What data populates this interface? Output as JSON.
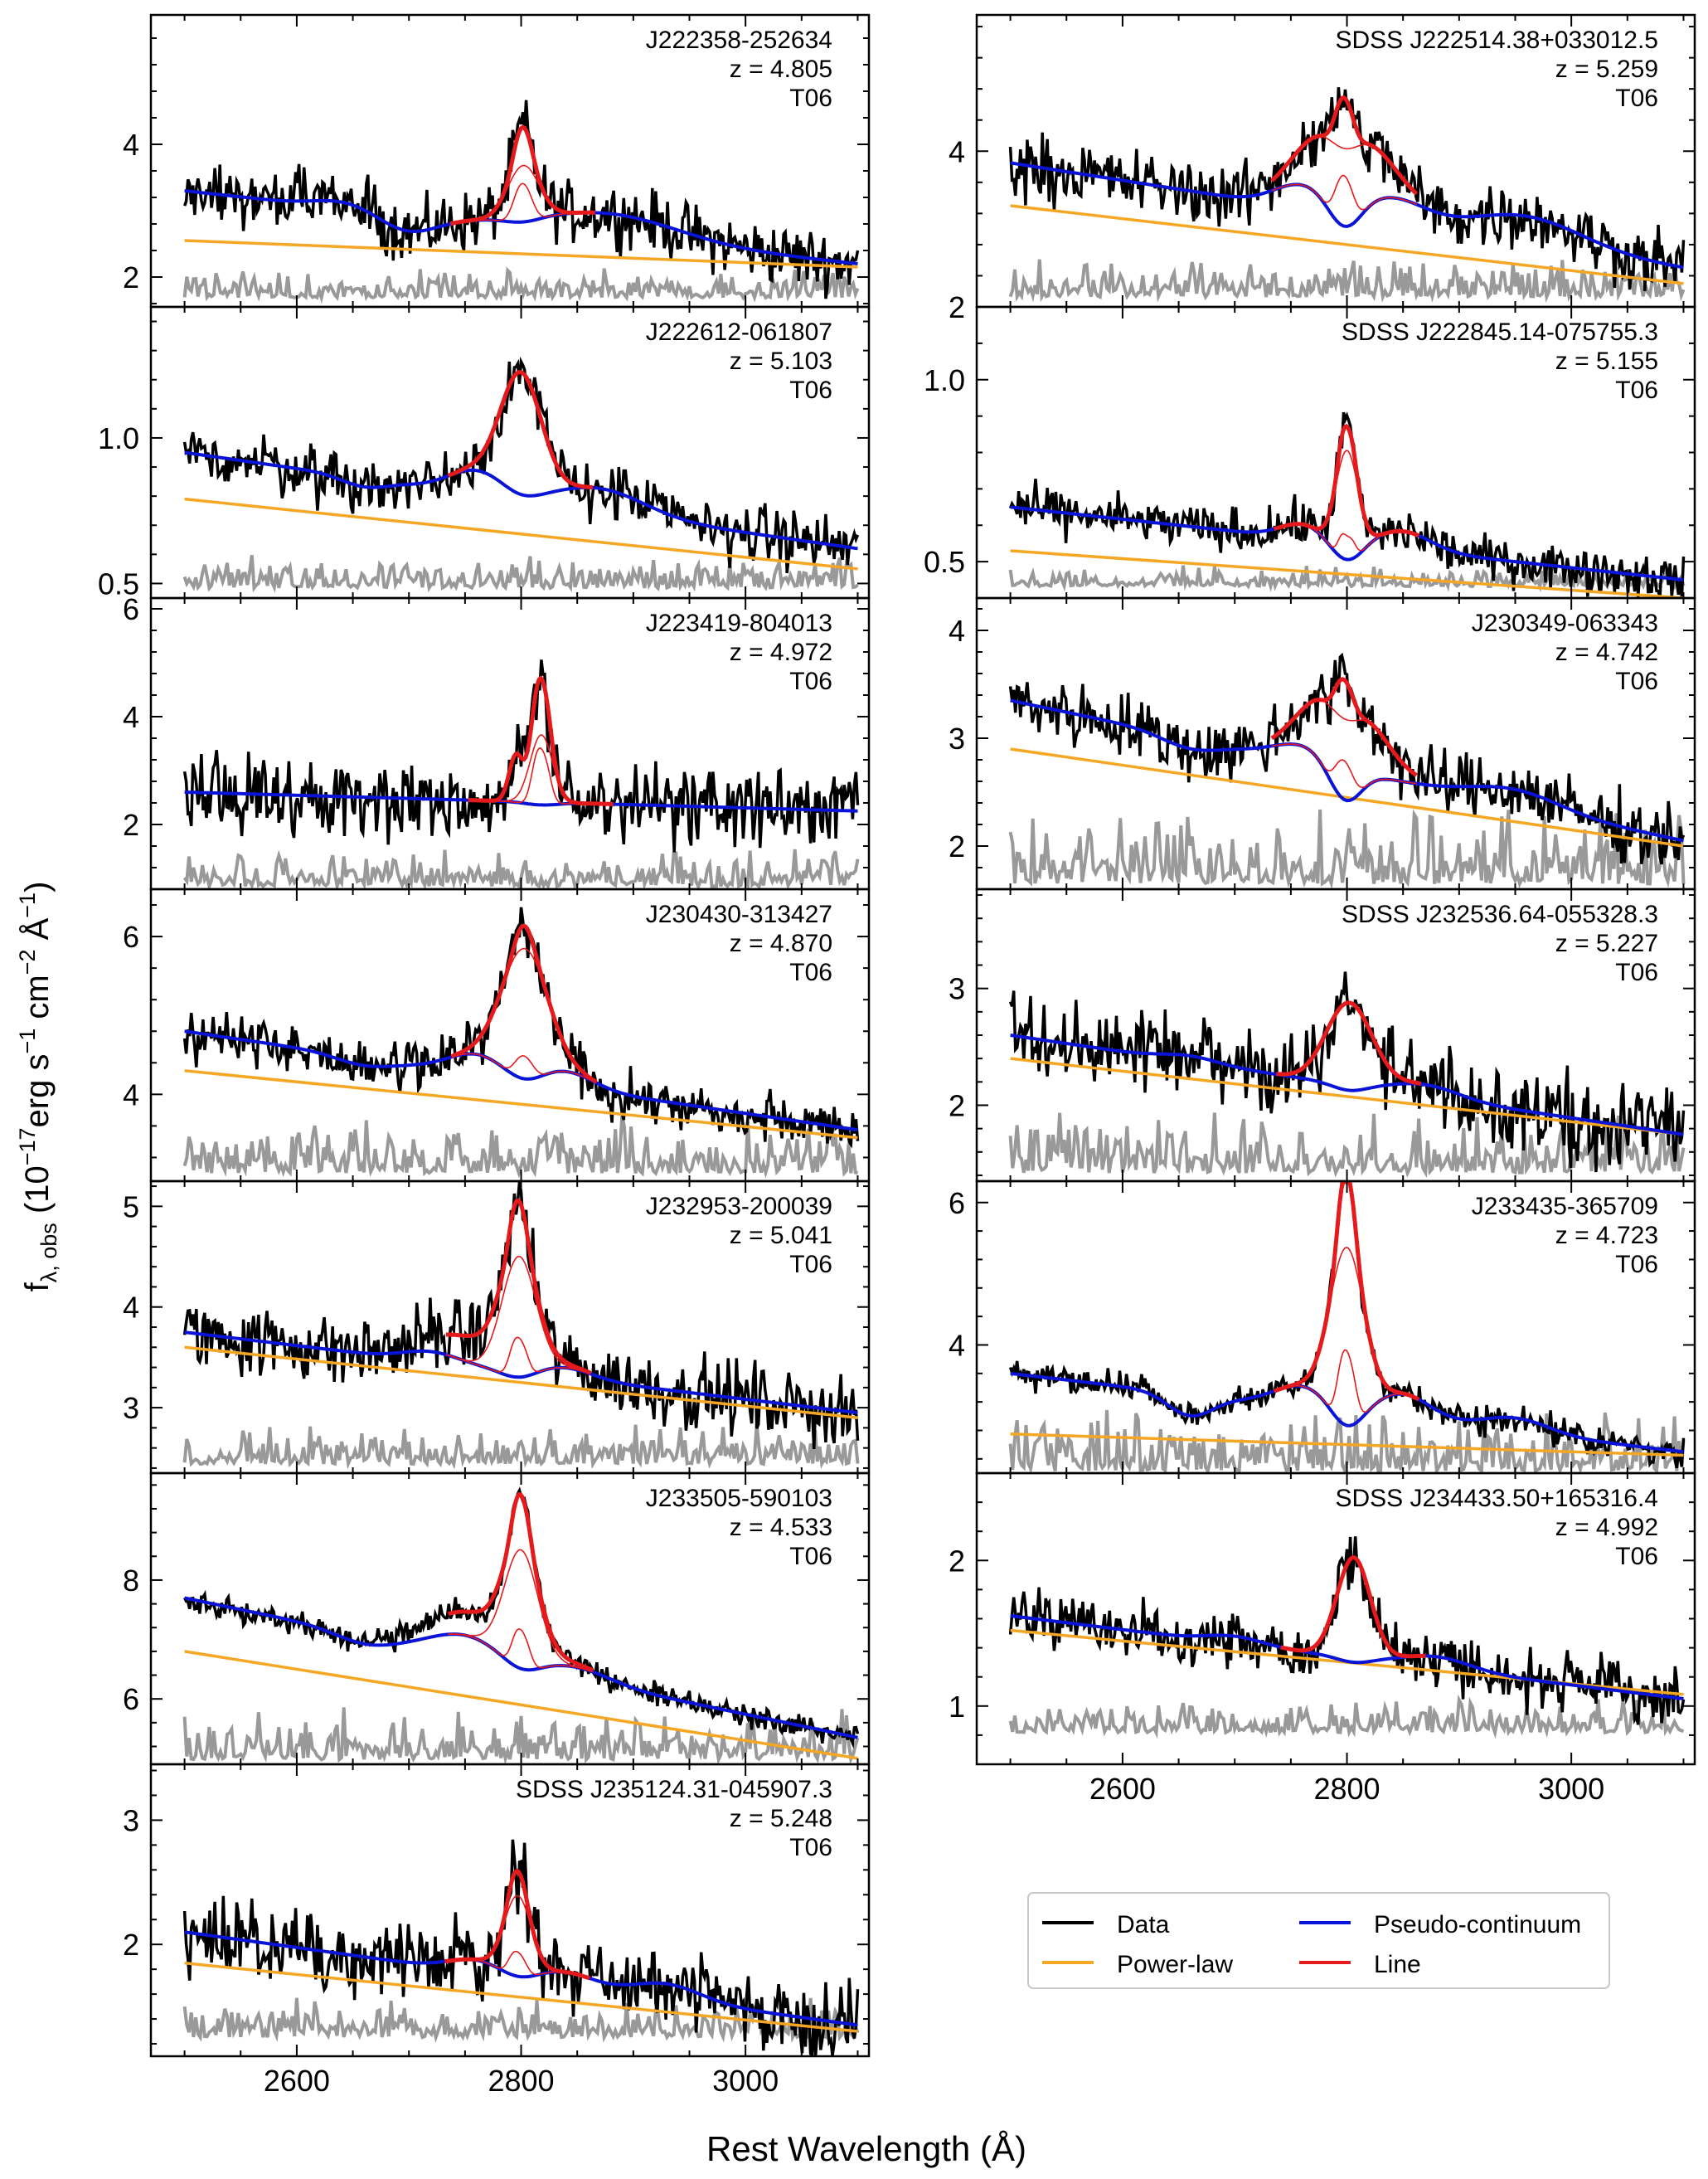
{
  "figure": {
    "xlabel": "Rest Wavelength (Å)",
    "ylabel_parts": [
      "f",
      "λ, obs",
      " (10",
      "−17",
      "erg s",
      "−1",
      " cm",
      "−2",
      " Å",
      "−1",
      ")"
    ],
    "colors": {
      "data": "#000000",
      "error": "#999999",
      "power_law": "#f5a623",
      "pseudo": "#0a14d8",
      "line": "#e41a1c"
    }
  },
  "legend": {
    "entries": [
      {
        "label": "Data",
        "color": "#000000"
      },
      {
        "label": "Pseudo-continuum",
        "color": "#0a14d8"
      },
      {
        "label": "Power-law",
        "color": "#f5a623"
      },
      {
        "label": "Line",
        "color": "#e41a1c"
      }
    ]
  },
  "chart_data": [
    {
      "type": "line",
      "name": "J222358-252634",
      "redshift": "z = 4.805",
      "template": "T06",
      "xlim": [
        2470,
        3110
      ],
      "ylim": [
        1.55,
        5.95
      ],
      "yticks": [
        2,
        4
      ],
      "ytick_labels": [
        "2",
        "4"
      ],
      "xticks": [
        2600,
        2800,
        3000
      ],
      "xtick_labels": [],
      "powerlaw": [
        2.55,
        2.15
      ],
      "pseudo": {
        "c0": 3.3,
        "c1": 2.2,
        "bumps": [
          {
            "c": 2640,
            "a": 0.1,
            "w": 25
          },
          {
            "c": 2700,
            "a": -0.25,
            "w": 25
          },
          {
            "c": 2880,
            "a": 0.35,
            "w": 60
          }
        ]
      },
      "line": {
        "center": 2802,
        "broad": [
          0.85,
          14
        ],
        "narrow": [
          0.4,
          6
        ],
        "split": false
      },
      "noise": 0.45,
      "err": [
        1.75,
        0.15
      ],
      "seed": 1
    },
    {
      "type": "line",
      "name": "SDSS J222514.38+033012.5",
      "redshift": "z = 5.259",
      "template": "T06",
      "xlim": [
        2470,
        3110
      ],
      "ylim": [
        2.0,
        5.75
      ],
      "yticks": [
        2,
        4
      ],
      "ytick_labels": [
        "2",
        "4"
      ],
      "xticks": [
        2600,
        2800,
        3000
      ],
      "xtick_labels": [],
      "powerlaw": [
        3.3,
        2.3
      ],
      "pseudo": {
        "c0": 3.85,
        "c1": 2.5,
        "bumps": [
          {
            "c": 2760,
            "a": 0.3,
            "w": 25
          },
          {
            "c": 2840,
            "a": 0.3,
            "w": 30
          },
          {
            "c": 2960,
            "a": 0.35,
            "w": 50
          }
        ]
      },
      "line": {
        "center": 2798,
        "broad": [
          1.0,
          32
        ],
        "narrow": [
          0.45,
          6
        ],
        "split": true
      },
      "noise": 0.4,
      "err": [
        2.2,
        0.18
      ],
      "seed": 2
    },
    {
      "type": "line",
      "name": "J222612-061807",
      "redshift": "z = 5.103",
      "template": "T06",
      "xlim": [
        2470,
        3110
      ],
      "ylim": [
        0.45,
        1.45
      ],
      "yticks": [
        0.5,
        1.0
      ],
      "ytick_labels": [
        "0.5",
        "1.0"
      ],
      "xticks": [
        2600,
        2800,
        3000
      ],
      "xtick_labels": [],
      "powerlaw": [
        0.79,
        0.55
      ],
      "pseudo": {
        "c0": 0.95,
        "c1": 0.62,
        "bumps": [
          {
            "c": 2660,
            "a": -0.03,
            "w": 20
          },
          {
            "c": 2760,
            "a": 0.08,
            "w": 25
          },
          {
            "c": 2870,
            "a": 0.08,
            "w": 40
          }
        ]
      },
      "line": {
        "center": 2800,
        "broad": [
          0.42,
          18
        ],
        "narrow": [
          0.0,
          5
        ],
        "split": false
      },
      "noise": 0.1,
      "err": [
        0.5,
        0.04
      ],
      "seed": 3
    },
    {
      "type": "line",
      "name": "SDSS J222845.14-075755.3",
      "redshift": "z = 5.155",
      "template": "T06",
      "xlim": [
        2470,
        3110
      ],
      "ylim": [
        0.4,
        1.2
      ],
      "yticks": [
        0.5,
        1.0
      ],
      "ytick_labels": [
        "0.5",
        "1.0"
      ],
      "xticks": [
        2600,
        2800,
        3000
      ],
      "xtick_labels": [],
      "powerlaw": [
        0.53,
        0.4
      ],
      "pseudo": {
        "c0": 0.65,
        "c1": 0.45,
        "bumps": [
          {
            "c": 2760,
            "a": 0.04,
            "w": 20
          },
          {
            "c": 2850,
            "a": 0.05,
            "w": 25
          }
        ]
      },
      "line": {
        "center": 2800,
        "broad": [
          0.3,
          10
        ],
        "narrow": [
          0.06,
          4
        ],
        "split": true
      },
      "noise": 0.06,
      "err": [
        0.44,
        0.02
      ],
      "seed": 4
    },
    {
      "type": "line",
      "name": "J223419-804013",
      "redshift": "z = 4.972",
      "template": "T06",
      "xlim": [
        2470,
        3110
      ],
      "ylim": [
        0.8,
        6.2
      ],
      "yticks": [
        2,
        4,
        6
      ],
      "ytick_labels": [
        "2",
        "4",
        "6"
      ],
      "xticks": [
        2600,
        2800,
        3000
      ],
      "xtick_labels": [],
      "powerlaw": null,
      "pseudo": {
        "c0": 2.6,
        "c1": 2.25,
        "bumps": []
      },
      "line": {
        "center": 2818,
        "broad": [
          1.3,
          10
        ],
        "narrow": [
          0.8,
          5
        ],
        "split": false,
        "extra": [
          2795,
          0.8,
          6
        ]
      },
      "noise": 0.7,
      "err": [
        0.95,
        0.25
      ],
      "seed": 5
    },
    {
      "type": "line",
      "name": "J230349-063343",
      "redshift": "z = 4.742",
      "template": "T06",
      "xlim": [
        2470,
        3110
      ],
      "ylim": [
        1.6,
        4.3
      ],
      "yticks": [
        2,
        3,
        4
      ],
      "ytick_labels": [
        "2",
        "3",
        "4"
      ],
      "xticks": [
        2600,
        2800,
        3000
      ],
      "xtick_labels": [],
      "powerlaw": [
        2.9,
        2.0
      ],
      "pseudo": {
        "c0": 3.35,
        "c1": 2.05,
        "bumps": [
          {
            "c": 2660,
            "a": -0.1,
            "w": 25
          },
          {
            "c": 2760,
            "a": 0.15,
            "w": 25
          },
          {
            "c": 2950,
            "a": 0.15,
            "w": 40
          }
        ]
      },
      "line": {
        "center": 2798,
        "broad": [
          0.75,
          30
        ],
        "narrow": [
          0.25,
          6
        ],
        "split": true
      },
      "noise": 0.3,
      "err": [
        1.75,
        0.25
      ],
      "seed": 6
    },
    {
      "type": "line",
      "name": "J230430-313427",
      "redshift": "z = 4.870",
      "template": "T06",
      "xlim": [
        2470,
        3110
      ],
      "ylim": [
        2.9,
        6.6
      ],
      "yticks": [
        4,
        6
      ],
      "ytick_labels": [
        "4",
        "6"
      ],
      "xticks": [
        2600,
        2800,
        3000
      ],
      "xtick_labels": [],
      "powerlaw": [
        4.3,
        3.45
      ],
      "pseudo": {
        "c0": 4.8,
        "c1": 3.55,
        "bumps": [
          {
            "c": 2660,
            "a": -0.1,
            "w": 25
          },
          {
            "c": 2760,
            "a": 0.25,
            "w": 25
          },
          {
            "c": 2840,
            "a": 0.2,
            "w": 25
          }
        ]
      },
      "line": {
        "center": 2803,
        "broad": [
          1.65,
          20
        ],
        "narrow": [
          0.2,
          6
        ],
        "split": false
      },
      "noise": 0.3,
      "err": [
        3.1,
        0.25
      ],
      "seed": 7
    },
    {
      "type": "line",
      "name": "SDSS J232536.64-055328.3",
      "redshift": "z = 5.227",
      "template": "T06",
      "xlim": [
        2470,
        3110
      ],
      "ylim": [
        1.35,
        3.85
      ],
      "yticks": [
        2,
        3
      ],
      "ytick_labels": [
        "2",
        "3"
      ],
      "xticks": [
        2600,
        2800,
        3000
      ],
      "xtick_labels": [],
      "powerlaw": [
        2.4,
        1.75
      ],
      "pseudo": {
        "c0": 2.6,
        "c1": 1.75,
        "bumps": [
          {
            "c": 2660,
            "a": 0.05,
            "w": 25
          },
          {
            "c": 2870,
            "a": 0.1,
            "w": 30
          }
        ]
      },
      "line": {
        "center": 2802,
        "broad": [
          0.75,
          20
        ],
        "narrow": [
          0.0,
          5
        ],
        "split": false
      },
      "noise": 0.35,
      "err": [
        1.5,
        0.2
      ],
      "seed": 8
    },
    {
      "type": "line",
      "name": "J232953-200039",
      "redshift": "z = 5.041",
      "template": "T06",
      "xlim": [
        2470,
        3110
      ],
      "ylim": [
        2.35,
        5.25
      ],
      "yticks": [
        3,
        4,
        5
      ],
      "ytick_labels": [
        "3",
        "4",
        "5"
      ],
      "xticks": [
        2600,
        2800,
        3000
      ],
      "xtick_labels": [],
      "powerlaw": [
        3.6,
        2.9
      ],
      "pseudo": {
        "c0": 3.75,
        "c1": 2.95,
        "bumps": [
          {
            "c": 2720,
            "a": 0.1,
            "w": 25
          },
          {
            "c": 2840,
            "a": 0.1,
            "w": 25
          }
        ]
      },
      "line": {
        "center": 2798,
        "broad": [
          1.2,
          15
        ],
        "narrow": [
          0.3,
          5
        ],
        "split": false,
        "wing": [
          2760,
          0.25,
          40
        ]
      },
      "noise": 0.35,
      "err": [
        2.5,
        0.15
      ],
      "seed": 9
    },
    {
      "type": "line",
      "name": "J233435-365709",
      "redshift": "z = 4.723",
      "template": "T06",
      "xlim": [
        2470,
        3110
      ],
      "ylim": [
        2.2,
        6.3
      ],
      "yticks": [
        4,
        6
      ],
      "ytick_labels": [
        "4",
        "6"
      ],
      "xticks": [
        2600,
        2800,
        3000
      ],
      "xtick_labels": [],
      "powerlaw": [
        2.75,
        2.45
      ],
      "pseudo": {
        "c0": 3.6,
        "c1": 2.5,
        "bumps": [
          {
            "c": 2660,
            "a": -0.3,
            "w": 20
          },
          {
            "c": 2760,
            "a": 0.3,
            "w": 25
          },
          {
            "c": 2850,
            "a": 0.35,
            "w": 25
          },
          {
            "c": 2950,
            "a": 0.2,
            "w": 30
          }
        ]
      },
      "line": {
        "center": 2800,
        "broad": [
          2.5,
          15
        ],
        "narrow": [
          0.8,
          5
        ],
        "split": true
      },
      "noise": 0.2,
      "err": [
        2.35,
        0.3
      ],
      "seed": 10
    },
    {
      "type": "line",
      "name": "J233505-590103",
      "redshift": "z = 4.533",
      "template": "T06",
      "xlim": [
        2470,
        3110
      ],
      "ylim": [
        4.9,
        9.8
      ],
      "yticks": [
        6,
        8
      ],
      "ytick_labels": [
        "6",
        "8"
      ],
      "xticks": [
        2600,
        2800,
        3000
      ],
      "xtick_labels": [],
      "powerlaw": [
        6.8,
        5.0
      ],
      "pseudo": {
        "c0": 7.7,
        "c1": 5.35,
        "bumps": [
          {
            "c": 2660,
            "a": -0.15,
            "w": 25
          },
          {
            "c": 2750,
            "a": 0.35,
            "w": 30
          },
          {
            "c": 2850,
            "a": 0.2,
            "w": 30
          }
        ]
      },
      "line": {
        "center": 2800,
        "broad": [
          2.0,
          15
        ],
        "narrow": [
          0.5,
          5
        ],
        "split": false,
        "wing": [
          2760,
          0.4,
          45
        ]
      },
      "noise": 0.2,
      "err": [
        5.1,
        0.3
      ],
      "seed": 11
    },
    {
      "type": "line",
      "name": "SDSS J234433.50+165316.4",
      "redshift": "z = 4.992",
      "template": "T06",
      "xlim": [
        2470,
        3110
      ],
      "ylim": [
        0.6,
        2.6
      ],
      "yticks": [
        1,
        2
      ],
      "ytick_labels": [
        "1",
        "2"
      ],
      "xticks": [
        2600,
        2800,
        3000
      ],
      "xtick_labels": [
        "2600",
        "2800",
        "3000"
      ],
      "powerlaw": [
        1.52,
        1.08
      ],
      "pseudo": {
        "c0": 1.62,
        "c1": 1.05,
        "bumps": [
          {
            "c": 2700,
            "a": 0.05,
            "w": 25
          },
          {
            "c": 2880,
            "a": 0.08,
            "w": 30
          }
        ]
      },
      "line": {
        "center": 2806,
        "broad": [
          0.72,
          15
        ],
        "narrow": [
          0.0,
          5
        ],
        "split": false
      },
      "noise": 0.2,
      "err": [
        0.85,
        0.08
      ],
      "seed": 12
    },
    {
      "type": "line",
      "name": "SDSS J235124.31-045907.3",
      "redshift": "z = 5.248",
      "template": "T06",
      "xlim": [
        2470,
        3110
      ],
      "ylim": [
        1.1,
        3.45
      ],
      "yticks": [
        2,
        3
      ],
      "ytick_labels": [
        "2",
        "3"
      ],
      "xticks": [
        2600,
        2800,
        3000
      ],
      "xtick_labels": [
        "2600",
        "2800",
        "3000"
      ],
      "powerlaw": [
        1.85,
        1.3
      ],
      "pseudo": {
        "c0": 2.1,
        "c1": 1.35,
        "bumps": [
          {
            "c": 2760,
            "a": 0.1,
            "w": 25
          },
          {
            "c": 2840,
            "a": 0.1,
            "w": 25
          },
          {
            "c": 2930,
            "a": 0.12,
            "w": 30
          }
        ]
      },
      "line": {
        "center": 2797,
        "broad": [
          0.65,
          12
        ],
        "narrow": [
          0.15,
          5
        ],
        "split": false
      },
      "noise": 0.3,
      "err": [
        1.3,
        0.12
      ],
      "seed": 13
    }
  ]
}
